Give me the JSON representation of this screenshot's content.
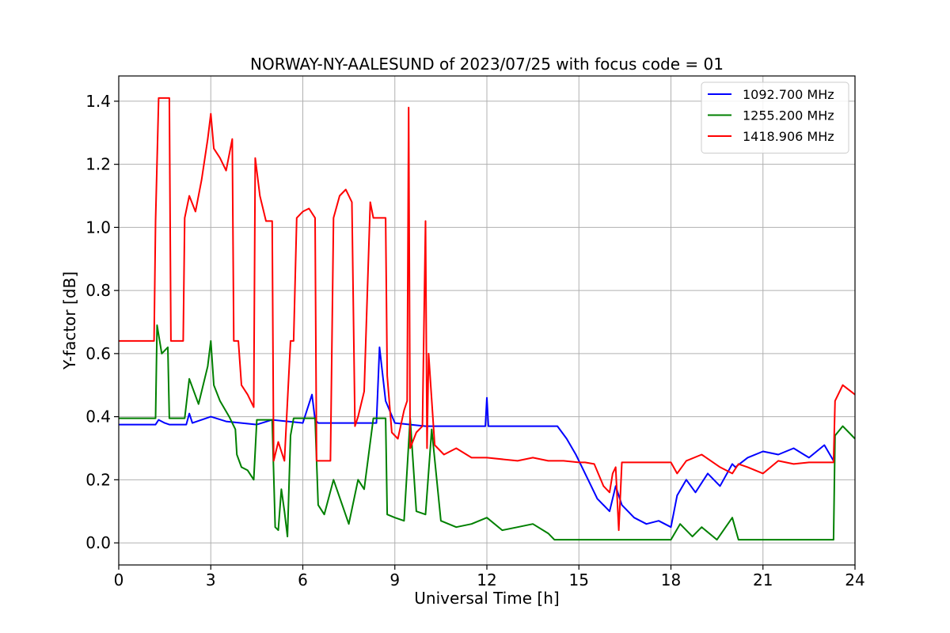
{
  "chart_data": {
    "type": "line",
    "title": "NORWAY-NY-AALESUND of 2023/07/25 with focus code = 01",
    "xlabel": "Universal Time [h]",
    "ylabel": "Y-factor [dB]",
    "xlim": [
      0,
      24
    ],
    "ylim": [
      -0.07,
      1.48
    ],
    "xticks": [
      0,
      3,
      6,
      9,
      12,
      15,
      18,
      21,
      24
    ],
    "xtick_labels": [
      "0",
      "3",
      "6",
      "9",
      "12",
      "15",
      "18",
      "21",
      "24"
    ],
    "yticks": [
      0.0,
      0.2,
      0.4,
      0.6,
      0.8,
      1.0,
      1.2,
      1.4
    ],
    "ytick_labels": [
      "0.0",
      "0.2",
      "0.4",
      "0.6",
      "0.8",
      "1.0",
      "1.2",
      "1.4"
    ],
    "grid": true,
    "legend_position": "top-right",
    "series": [
      {
        "name": "1092.700 MHz",
        "color": "#0000ff",
        "x": [
          0,
          1.2,
          1.3,
          1.5,
          1.65,
          2.2,
          2.3,
          2.4,
          3.0,
          3.5,
          4.0,
          4.5,
          5.0,
          6.0,
          6.3,
          6.4,
          6.5,
          7.0,
          8.0,
          8.4,
          8.5,
          8.7,
          9.0,
          9.5,
          10.0,
          11.0,
          11.95,
          12.0,
          12.05,
          13.0,
          14.0,
          14.3,
          14.6,
          14.9,
          15.0,
          15.3,
          15.6,
          16.0,
          16.2,
          16.4,
          16.8,
          17.2,
          17.6,
          18.0,
          18.2,
          18.5,
          18.8,
          19.2,
          19.6,
          20.0,
          20.1,
          20.5,
          21.0,
          21.5,
          22.0,
          22.5,
          23.0,
          23.3
        ],
        "y": [
          0.375,
          0.375,
          0.39,
          0.38,
          0.375,
          0.375,
          0.41,
          0.38,
          0.4,
          0.385,
          0.38,
          0.375,
          0.39,
          0.38,
          0.47,
          0.39,
          0.38,
          0.38,
          0.38,
          0.38,
          0.62,
          0.45,
          0.38,
          0.375,
          0.37,
          0.37,
          0.37,
          0.46,
          0.37,
          0.37,
          0.37,
          0.37,
          0.33,
          0.28,
          0.26,
          0.2,
          0.14,
          0.1,
          0.18,
          0.12,
          0.08,
          0.06,
          0.07,
          0.05,
          0.15,
          0.2,
          0.16,
          0.22,
          0.18,
          0.25,
          0.24,
          0.27,
          0.29,
          0.28,
          0.3,
          0.27,
          0.31,
          0.26
        ]
      },
      {
        "name": "1255.200 MHz",
        "color": "#008000",
        "x": [
          0,
          1.1,
          1.2,
          1.25,
          1.4,
          1.6,
          1.65,
          2.1,
          2.15,
          2.3,
          2.6,
          2.9,
          3.0,
          3.1,
          3.3,
          3.6,
          3.8,
          3.85,
          4.0,
          4.2,
          4.4,
          4.5,
          5.0,
          5.1,
          5.2,
          5.3,
          5.4,
          5.5,
          5.6,
          5.7,
          5.8,
          6.0,
          6.3,
          6.4,
          6.5,
          6.7,
          7.0,
          7.5,
          7.8,
          8.0,
          8.3,
          8.6,
          8.7,
          8.75,
          9.0,
          9.3,
          9.5,
          9.7,
          10.0,
          10.2,
          10.5,
          11.0,
          11.5,
          12.0,
          12.5,
          13.0,
          13.5,
          14.0,
          14.2,
          15.0,
          16.0,
          17.0,
          18.0,
          18.3,
          18.7,
          19.0,
          19.5,
          20.0,
          20.2,
          21.0,
          22.0,
          23.0,
          23.3,
          23.35,
          23.6,
          24.0
        ],
        "y": [
          0.395,
          0.395,
          0.395,
          0.69,
          0.6,
          0.62,
          0.395,
          0.395,
          0.395,
          0.52,
          0.44,
          0.56,
          0.64,
          0.5,
          0.45,
          0.4,
          0.36,
          0.28,
          0.24,
          0.23,
          0.2,
          0.39,
          0.39,
          0.05,
          0.04,
          0.17,
          0.1,
          0.02,
          0.34,
          0.395,
          0.395,
          0.395,
          0.395,
          0.395,
          0.12,
          0.09,
          0.2,
          0.06,
          0.2,
          0.17,
          0.395,
          0.395,
          0.395,
          0.09,
          0.08,
          0.07,
          0.395,
          0.1,
          0.09,
          0.36,
          0.07,
          0.05,
          0.06,
          0.08,
          0.04,
          0.05,
          0.06,
          0.03,
          0.01,
          0.01,
          0.01,
          0.01,
          0.01,
          0.06,
          0.02,
          0.05,
          0.01,
          0.08,
          0.01,
          0.01,
          0.01,
          0.01,
          0.01,
          0.34,
          0.37,
          0.33
        ]
      },
      {
        "name": "1418.906 MHz",
        "color": "#ff0000",
        "x": [
          0,
          1.15,
          1.2,
          1.3,
          1.65,
          1.7,
          2.1,
          2.15,
          2.3,
          2.5,
          2.7,
          2.9,
          3.0,
          3.1,
          3.3,
          3.5,
          3.7,
          3.75,
          3.9,
          4.0,
          4.2,
          4.4,
          4.45,
          4.6,
          4.8,
          5.0,
          5.05,
          5.2,
          5.4,
          5.6,
          5.7,
          5.8,
          6.0,
          6.2,
          6.4,
          6.45,
          6.6,
          6.9,
          7.0,
          7.2,
          7.4,
          7.6,
          7.7,
          7.8,
          8.0,
          8.2,
          8.3,
          8.7,
          8.75,
          8.9,
          9.1,
          9.3,
          9.4,
          9.45,
          9.5,
          9.7,
          9.9,
          10.0,
          10.05,
          10.1,
          10.3,
          10.6,
          11.0,
          11.5,
          12.0,
          13.0,
          13.5,
          14.0,
          14.5,
          15.0,
          15.2,
          15.5,
          15.8,
          16.0,
          16.1,
          16.2,
          16.3,
          16.4,
          16.6,
          17.0,
          17.5,
          18.0,
          18.2,
          18.5,
          19.0,
          19.3,
          19.6,
          20.0,
          20.2,
          20.5,
          21.0,
          21.5,
          22.0,
          22.5,
          23.0,
          23.3,
          23.35,
          23.6,
          24.0
        ],
        "y": [
          0.64,
          0.64,
          1.02,
          1.41,
          1.41,
          0.64,
          0.64,
          1.03,
          1.1,
          1.05,
          1.15,
          1.28,
          1.36,
          1.25,
          1.22,
          1.18,
          1.28,
          0.64,
          0.64,
          0.5,
          0.47,
          0.43,
          1.22,
          1.1,
          1.02,
          1.02,
          0.26,
          0.32,
          0.26,
          0.64,
          0.64,
          1.03,
          1.05,
          1.06,
          1.03,
          0.26,
          0.26,
          0.26,
          1.03,
          1.1,
          1.12,
          1.08,
          0.37,
          0.4,
          0.48,
          1.08,
          1.03,
          1.03,
          0.53,
          0.35,
          0.33,
          0.42,
          0.45,
          1.38,
          0.3,
          0.35,
          0.37,
          1.02,
          0.3,
          0.6,
          0.31,
          0.28,
          0.3,
          0.27,
          0.27,
          0.26,
          0.27,
          0.26,
          0.26,
          0.255,
          0.255,
          0.25,
          0.18,
          0.16,
          0.22,
          0.24,
          0.04,
          0.255,
          0.255,
          0.255,
          0.255,
          0.255,
          0.22,
          0.26,
          0.28,
          0.26,
          0.24,
          0.22,
          0.25,
          0.24,
          0.22,
          0.26,
          0.25,
          0.255,
          0.255,
          0.255,
          0.45,
          0.5,
          0.47
        ]
      }
    ]
  }
}
